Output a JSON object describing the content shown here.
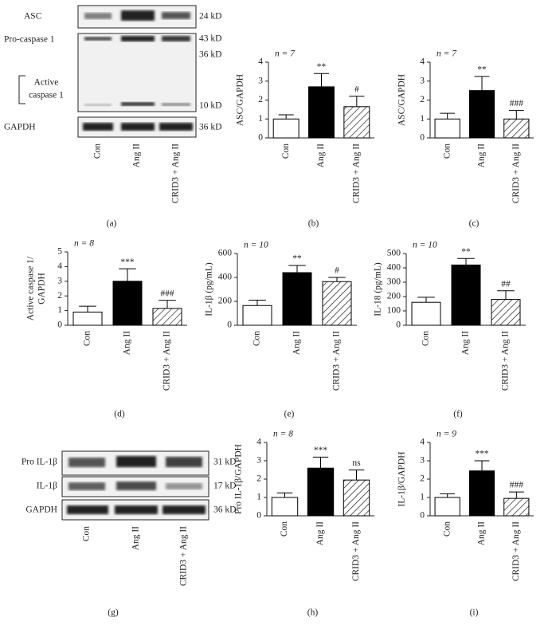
{
  "chart_data": [
    {
      "type": "bar",
      "panel": "(b)",
      "n_label": "n = 7",
      "ylabel": "ASC/GAPDH",
      "categories": [
        "Con",
        "Ang II",
        "CRID3 + Ang II"
      ],
      "values": [
        1,
        2.7,
        1.65
      ],
      "errors": [
        0.22,
        0.7,
        0.55
      ],
      "significance": [
        null,
        "**",
        "#"
      ],
      "fills": [
        "#ffffff",
        "#000000",
        "hatch"
      ],
      "ylim": [
        0,
        4
      ],
      "yticks": [
        0,
        1,
        2,
        3,
        4
      ]
    },
    {
      "type": "bar",
      "panel": "(c)",
      "n_label": "n = 7",
      "ylabel": "ASC/GAPDH",
      "categories": [
        "Con",
        "Ang II",
        "CRID3 + Ang II"
      ],
      "values": [
        1,
        2.5,
        1.0
      ],
      "errors": [
        0.3,
        0.75,
        0.45
      ],
      "significance": [
        null,
        "**",
        "###"
      ],
      "fills": [
        "#ffffff",
        "#000000",
        "hatch"
      ],
      "ylim": [
        0,
        4
      ],
      "yticks": [
        0,
        1,
        2,
        3,
        4
      ]
    },
    {
      "type": "bar",
      "panel": "(d)",
      "n_label": "n = 8",
      "ylabel": [
        "Active caspase 1/",
        "GAPDH"
      ],
      "categories": [
        "Con",
        "Ang II",
        "CRID3 + Ang II"
      ],
      "values": [
        0.9,
        3.0,
        1.15
      ],
      "errors": [
        0.4,
        0.85,
        0.55
      ],
      "significance": [
        null,
        "***",
        "###"
      ],
      "fills": [
        "#ffffff",
        "#000000",
        "hatch"
      ],
      "ylim": [
        0,
        5
      ],
      "yticks": [
        0,
        1,
        2,
        3,
        4,
        5
      ]
    },
    {
      "type": "bar",
      "panel": "(e)",
      "n_label": "n = 10",
      "ylabel": "IL-1β (pg/mL)",
      "categories": [
        "Con",
        "Ang II",
        "CRID3 + Ang II"
      ],
      "values": [
        165,
        440,
        365
      ],
      "errors": [
        45,
        60,
        35
      ],
      "significance": [
        null,
        "**",
        "#"
      ],
      "fills": [
        "#ffffff",
        "#000000",
        "hatch"
      ],
      "ylim": [
        0,
        600
      ],
      "yticks": [
        0,
        200,
        400,
        600
      ]
    },
    {
      "type": "bar",
      "panel": "(f)",
      "n_label": "n = 10",
      "ylabel": "IL-18 (pg/mL)",
      "categories": [
        "Con",
        "Ang II",
        "CRID3 + Ang II"
      ],
      "values": [
        160,
        420,
        180
      ],
      "errors": [
        35,
        45,
        60
      ],
      "significance": [
        null,
        "**",
        "##"
      ],
      "fills": [
        "#ffffff",
        "#000000",
        "hatch"
      ],
      "ylim": [
        0,
        500
      ],
      "yticks": [
        0,
        100,
        200,
        300,
        400,
        500
      ]
    },
    {
      "type": "bar",
      "panel": "(h)",
      "n_label": "n = 8",
      "ylabel": "Pro IL-1β/GAPDH",
      "categories": [
        "Con",
        "Ang II",
        "CRID3 + Ang II"
      ],
      "values": [
        1,
        2.6,
        1.95
      ],
      "errors": [
        0.25,
        0.6,
        0.55
      ],
      "significance": [
        null,
        "***",
        "ns"
      ],
      "fills": [
        "#ffffff",
        "#000000",
        "hatch"
      ],
      "ylim": [
        0,
        4
      ],
      "yticks": [
        0,
        1,
        2,
        3,
        4
      ]
    },
    {
      "type": "bar",
      "panel": "(i)",
      "n_label": "n = 9",
      "ylabel": "IL-1β/GAPDH",
      "categories": [
        "Con",
        "Ang II",
        "CRID3 + Ang II"
      ],
      "values": [
        1,
        2.45,
        0.95
      ],
      "errors": [
        0.2,
        0.55,
        0.35
      ],
      "significance": [
        null,
        "***",
        "###"
      ],
      "fills": [
        "#ffffff",
        "#000000",
        "hatch"
      ],
      "ylim": [
        0,
        4
      ],
      "yticks": [
        0,
        1,
        2,
        3,
        4
      ]
    }
  ],
  "blots": [
    {
      "panel": "(a)",
      "row_labels": [
        "ASC",
        "Pro-caspase 1",
        [
          "Active",
          "caspase 1"
        ],
        "GAPDH"
      ],
      "markers": [
        "24 kD",
        "43 kD",
        "36 kD",
        "10 kD",
        "36 kD"
      ],
      "categories": [
        "Con",
        "Ang II",
        "CRID3 + Ang II"
      ]
    },
    {
      "panel": "(g)",
      "row_labels": [
        "Pro IL-1β",
        "IL-1β",
        "GAPDH"
      ],
      "markers": [
        "31 kD",
        "17 kD",
        "36 kD"
      ],
      "categories": [
        "Con",
        "Ang II",
        "CRID3 + Ang II"
      ]
    }
  ]
}
